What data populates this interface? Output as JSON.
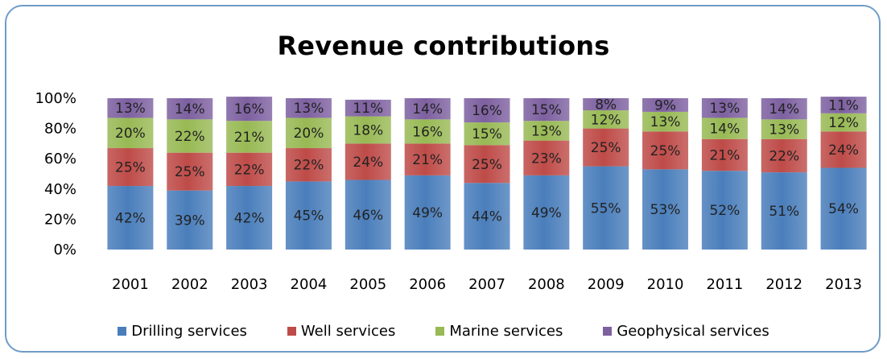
{
  "chart_data": {
    "type": "bar",
    "stacked": true,
    "title": "Revenue contributions",
    "xlabel": "",
    "ylabel": "",
    "ylim": [
      0,
      100
    ],
    "y_ticks": [
      "0%",
      "20%",
      "40%",
      "60%",
      "80%",
      "100%"
    ],
    "categories": [
      "2001",
      "2002",
      "2003",
      "2004",
      "2005",
      "2006",
      "2007",
      "2008",
      "2009",
      "2010",
      "2011",
      "2012",
      "2013"
    ],
    "series": [
      {
        "name": "Drilling services",
        "color": "#4a7ebb",
        "values": [
          42,
          39,
          42,
          45,
          46,
          49,
          44,
          49,
          55,
          53,
          52,
          51,
          54
        ]
      },
      {
        "name": "Well services",
        "color": "#be4b48",
        "values": [
          25,
          25,
          22,
          22,
          24,
          21,
          25,
          23,
          25,
          25,
          21,
          22,
          24
        ]
      },
      {
        "name": "Marine services",
        "color": "#98b954",
        "values": [
          20,
          22,
          21,
          20,
          18,
          16,
          15,
          13,
          12,
          13,
          14,
          13,
          12
        ]
      },
      {
        "name": "Geophysical services",
        "color": "#7d60a0",
        "values": [
          13,
          14,
          16,
          13,
          11,
          14,
          16,
          15,
          8,
          9,
          13,
          14,
          11
        ]
      }
    ],
    "legend_position": "bottom",
    "grid": false
  }
}
